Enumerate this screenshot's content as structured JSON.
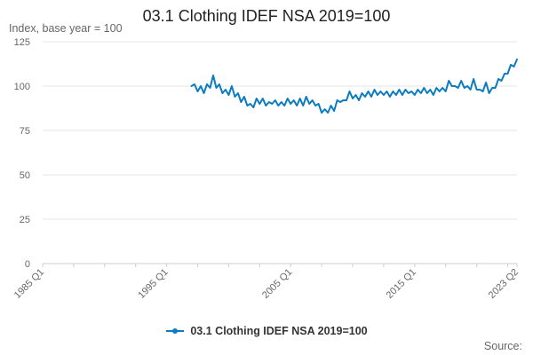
{
  "colors": {
    "series": "#0b7cc0",
    "grid": "#e6e6e6",
    "axis": "#cccccc"
  },
  "source_label": "Source:",
  "chart_data": {
    "type": "line",
    "title": "03.1 Clothing IDEF NSA 2019=100",
    "ylabel": "Index, base year = 100",
    "xlabel": "",
    "ylim": [
      0,
      125
    ],
    "yticks": [
      0,
      25,
      50,
      75,
      100,
      125
    ],
    "x_range": [
      1985.0,
      2023.25
    ],
    "xticks": [
      {
        "label": "1985 Q1",
        "value": 1985.0
      },
      {
        "label": "1995 Q1",
        "value": 1995.0
      },
      {
        "label": "2005 Q1",
        "value": 2005.0
      },
      {
        "label": "2015 Q1",
        "value": 2015.0
      },
      {
        "label": "2023 Q2",
        "value": 2023.25
      }
    ],
    "legend": "bottom-center",
    "series": [
      {
        "name": "03.1 Clothing IDEF NSA 2019=100",
        "x": [
          1997.0,
          1997.25,
          1997.5,
          1997.75,
          1998.0,
          1998.25,
          1998.5,
          1998.75,
          1999.0,
          1999.25,
          1999.5,
          1999.75,
          2000.0,
          2000.25,
          2000.5,
          2000.75,
          2001.0,
          2001.25,
          2001.5,
          2001.75,
          2002.0,
          2002.25,
          2002.5,
          2002.75,
          2003.0,
          2003.25,
          2003.5,
          2003.75,
          2004.0,
          2004.25,
          2004.5,
          2004.75,
          2005.0,
          2005.25,
          2005.5,
          2005.75,
          2006.0,
          2006.25,
          2006.5,
          2006.75,
          2007.0,
          2007.25,
          2007.5,
          2007.75,
          2008.0,
          2008.25,
          2008.5,
          2008.75,
          2009.0,
          2009.25,
          2009.5,
          2009.75,
          2010.0,
          2010.25,
          2010.5,
          2010.75,
          2011.0,
          2011.25,
          2011.5,
          2011.75,
          2012.0,
          2012.25,
          2012.5,
          2012.75,
          2013.0,
          2013.25,
          2013.5,
          2013.75,
          2014.0,
          2014.25,
          2014.5,
          2014.75,
          2015.0,
          2015.25,
          2015.5,
          2015.75,
          2016.0,
          2016.25,
          2016.5,
          2016.75,
          2017.0,
          2017.25,
          2017.5,
          2017.75,
          2018.0,
          2018.25,
          2018.5,
          2018.75,
          2019.0,
          2019.25,
          2019.5,
          2019.75,
          2020.0,
          2020.25,
          2020.5,
          2020.75,
          2021.0,
          2021.25,
          2021.5,
          2021.75,
          2022.0,
          2022.25,
          2022.5,
          2022.75,
          2023.0,
          2023.25
        ],
        "values": [
          100,
          101,
          97,
          100,
          96,
          101,
          99,
          106,
          99,
          101,
          96,
          98,
          95,
          100,
          94,
          96,
          91,
          94,
          89,
          90,
          88,
          93,
          90,
          93,
          89,
          91,
          90,
          92,
          89,
          91,
          89,
          93,
          90,
          92,
          89,
          93,
          89,
          94,
          90,
          92,
          89,
          90,
          85,
          87,
          85,
          89,
          86,
          92,
          91,
          92,
          92,
          97,
          93,
          95,
          92,
          96,
          94,
          97,
          94,
          98,
          95,
          97,
          95,
          97,
          94,
          97,
          95,
          98,
          95,
          98,
          96,
          97,
          95,
          98,
          96,
          99,
          96,
          98,
          95,
          99,
          97,
          99,
          97,
          103,
          100,
          100,
          99,
          103,
          99,
          100,
          98,
          104,
          98,
          98,
          97,
          102,
          96,
          99,
          99,
          104,
          103,
          107,
          107,
          112,
          111,
          115
        ]
      }
    ]
  }
}
